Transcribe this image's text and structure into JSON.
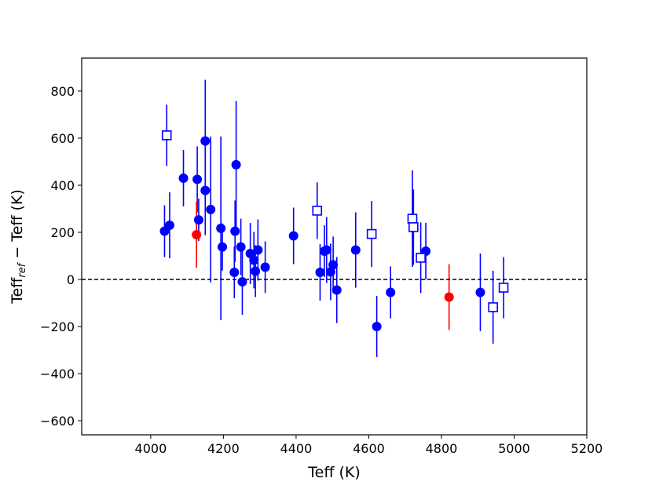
{
  "chart_data": {
    "type": "scatter",
    "title": "",
    "xlabel": "Teff (K)",
    "ylabel": "Teff",
    "ylabel_sub": "ref",
    "ylabel_suffix": " − Teff (K)",
    "xlim": [
      3810,
      5200
    ],
    "ylim": [
      -660,
      940
    ],
    "x_ticks": [
      4000,
      4200,
      4400,
      4600,
      4800,
      5000,
      5200
    ],
    "x_tick_labels": [
      "4000",
      "4200",
      "4400",
      "4600",
      "4800",
      "5000",
      "5200"
    ],
    "y_ticks": [
      800,
      600,
      400,
      200,
      0,
      -200,
      -400,
      -600
    ],
    "y_tick_labels": [
      "800",
      "600",
      "400",
      "200",
      "0",
      "−200",
      "−400",
      "−600"
    ],
    "grid": false,
    "reference_line": {
      "y": 0,
      "style": "dashed",
      "color": "#000000"
    },
    "series": [
      {
        "marker": "filled-circle",
        "color": "#0000ff",
        "points": [
          {
            "x": 4038,
            "y": 205,
            "err": 110
          },
          {
            "x": 4052,
            "y": 230,
            "err": 140
          },
          {
            "x": 4090,
            "y": 430,
            "err": 120
          },
          {
            "x": 4128,
            "y": 425,
            "err": 140
          },
          {
            "x": 4132,
            "y": 253,
            "err": 90
          },
          {
            "x": 4150,
            "y": 588,
            "err": 260
          },
          {
            "x": 4150,
            "y": 378,
            "err": 190
          },
          {
            "x": 4165,
            "y": 297,
            "err": 310
          },
          {
            "x": 4193,
            "y": 217,
            "err": 390
          },
          {
            "x": 4197,
            "y": 138,
            "err": 100
          },
          {
            "x": 4230,
            "y": 30,
            "err": 110
          },
          {
            "x": 4232,
            "y": 205,
            "err": 130
          },
          {
            "x": 4235,
            "y": 487,
            "err": 270
          },
          {
            "x": 4248,
            "y": 138,
            "err": 120
          },
          {
            "x": 4252,
            "y": -10,
            "err": 140
          },
          {
            "x": 4274,
            "y": 110,
            "err": 130
          },
          {
            "x": 4284,
            "y": 82,
            "err": 120
          },
          {
            "x": 4288,
            "y": 35,
            "err": 110
          },
          {
            "x": 4295,
            "y": 125,
            "err": 130
          },
          {
            "x": 4315,
            "y": 52,
            "err": 110
          },
          {
            "x": 4393,
            "y": 185,
            "err": 120
          },
          {
            "x": 4466,
            "y": 30,
            "err": 120
          },
          {
            "x": 4478,
            "y": 120,
            "err": 110
          },
          {
            "x": 4484,
            "y": 125,
            "err": 140
          },
          {
            "x": 4495,
            "y": 32,
            "err": 120
          },
          {
            "x": 4502,
            "y": 62,
            "err": 120
          },
          {
            "x": 4512,
            "y": -45,
            "err": 140
          },
          {
            "x": 4564,
            "y": 125,
            "err": 160
          },
          {
            "x": 4622,
            "y": -200,
            "err": 130
          },
          {
            "x": 4660,
            "y": -55,
            "err": 110
          },
          {
            "x": 4757,
            "y": 120,
            "err": 120
          },
          {
            "x": 4907,
            "y": -55,
            "err": 165
          }
        ]
      },
      {
        "marker": "open-square",
        "color": "#0000ff",
        "points": [
          {
            "x": 4044,
            "y": 612,
            "err": 130
          },
          {
            "x": 4458,
            "y": 292,
            "err": 120
          },
          {
            "x": 4608,
            "y": 193,
            "err": 140
          },
          {
            "x": 4720,
            "y": 258,
            "err": 205
          },
          {
            "x": 4723,
            "y": 222,
            "err": 160
          },
          {
            "x": 4743,
            "y": 92,
            "err": 150
          },
          {
            "x": 4942,
            "y": -118,
            "err": 155
          },
          {
            "x": 4971,
            "y": -35,
            "err": 130
          }
        ]
      },
      {
        "marker": "filled-circle",
        "color": "#ff0000",
        "points": [
          {
            "x": 4126,
            "y": 190,
            "err": 140
          },
          {
            "x": 4821,
            "y": -75,
            "err": 140
          }
        ]
      }
    ]
  }
}
